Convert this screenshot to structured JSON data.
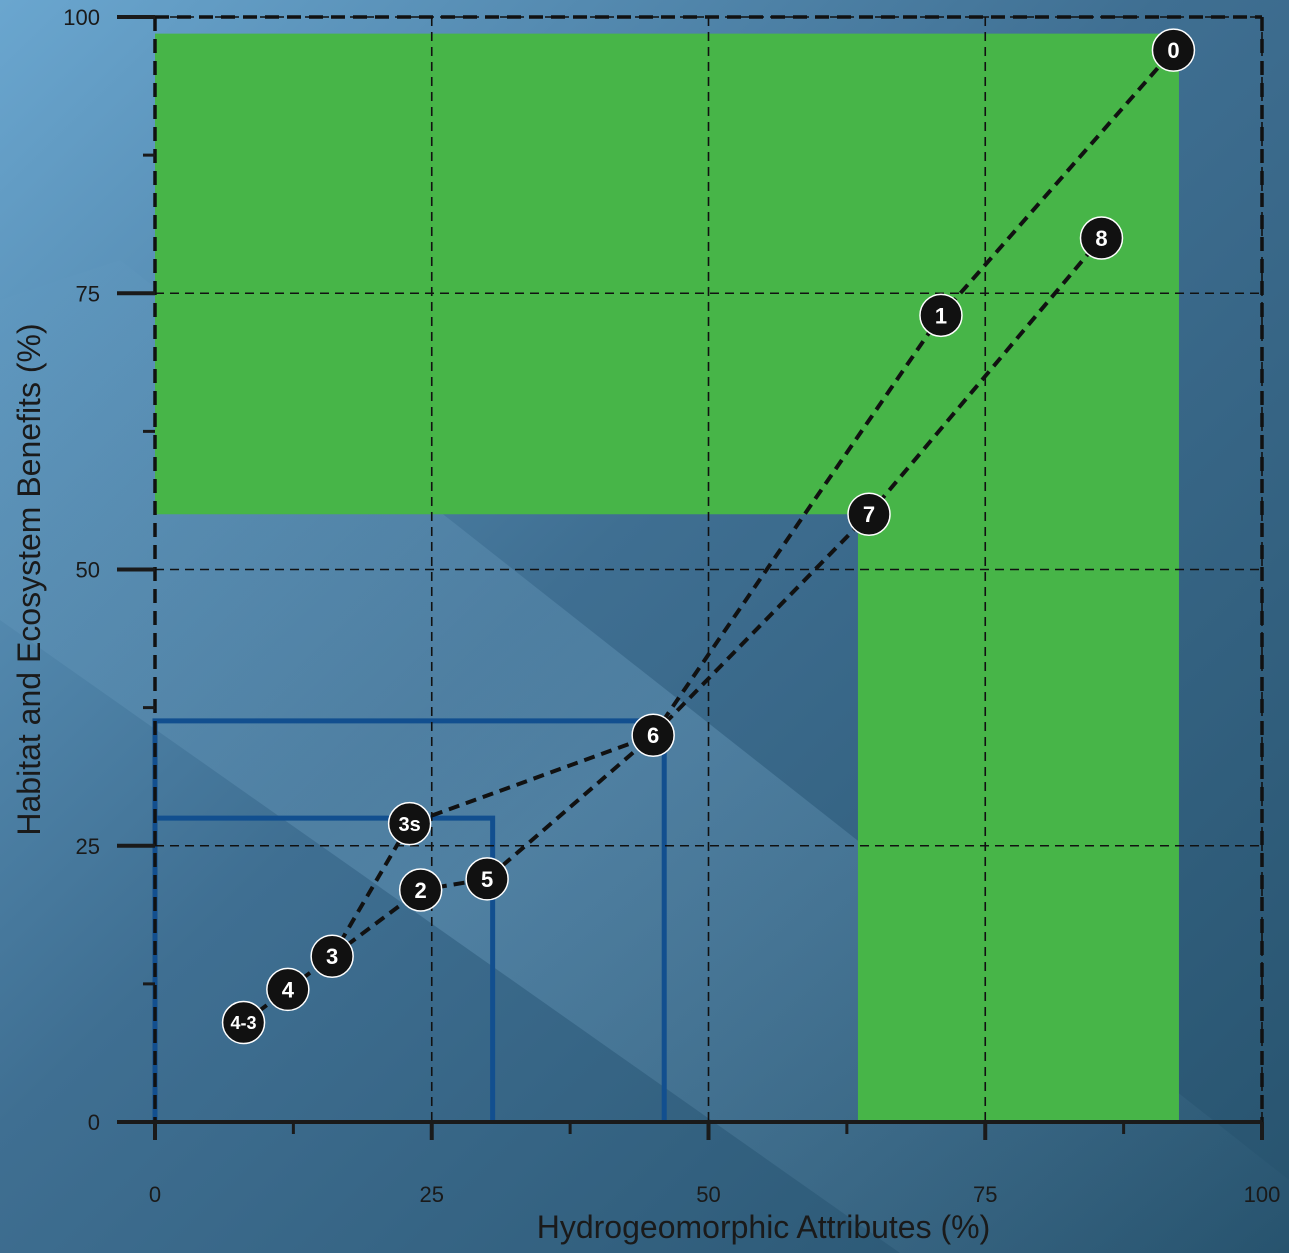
{
  "chart_data": {
    "type": "scatter",
    "title": "",
    "xlabel": "Hydrogeomorphic Attributes (%)",
    "ylabel": "Habitat and Ecosystem Benefits (%)",
    "xlim": [
      0,
      100
    ],
    "ylim": [
      0,
      100
    ],
    "x_ticks": [
      0,
      25,
      50,
      75,
      100
    ],
    "y_ticks": [
      0,
      25,
      50,
      75,
      100
    ],
    "x_tick_labels": [
      "0",
      "25",
      "50",
      "75",
      "100"
    ],
    "y_tick_labels": [
      "0",
      "25",
      "50",
      "75",
      "100"
    ],
    "minor_tick_step": 12.5,
    "grid": true,
    "colors": {
      "green_region": "#47b548",
      "blue_outline": "#124f8f",
      "marker": "#111111",
      "marker_text": "#ffffff",
      "axis": "#1a1a1a"
    },
    "green_region": {
      "x_max": 92.5,
      "y_max": 98.5,
      "notch_x": 63.5,
      "notch_y": 55
    },
    "blue_boxes": [
      {
        "x_max": 46,
        "y_max": 36.3
      },
      {
        "x_max": 30.5,
        "y_max": 27.5
      }
    ],
    "points": [
      {
        "label": "0",
        "x": 92,
        "y": 97
      },
      {
        "label": "1",
        "x": 71,
        "y": 73
      },
      {
        "label": "8",
        "x": 85.5,
        "y": 80
      },
      {
        "label": "7",
        "x": 64.5,
        "y": 55
      },
      {
        "label": "6",
        "x": 45,
        "y": 35
      },
      {
        "label": "3s",
        "x": 23,
        "y": 27
      },
      {
        "label": "2",
        "x": 24,
        "y": 21
      },
      {
        "label": "5",
        "x": 30,
        "y": 22
      },
      {
        "label": "3",
        "x": 16,
        "y": 15
      },
      {
        "label": "4",
        "x": 12,
        "y": 12
      },
      {
        "label": "4-3",
        "x": 8,
        "y": 9
      }
    ],
    "paths": [
      [
        "4-3",
        "4",
        "3",
        "3s",
        "6",
        "1",
        "0"
      ],
      [
        "3",
        "2",
        "5",
        "6",
        "7",
        "8"
      ]
    ]
  }
}
